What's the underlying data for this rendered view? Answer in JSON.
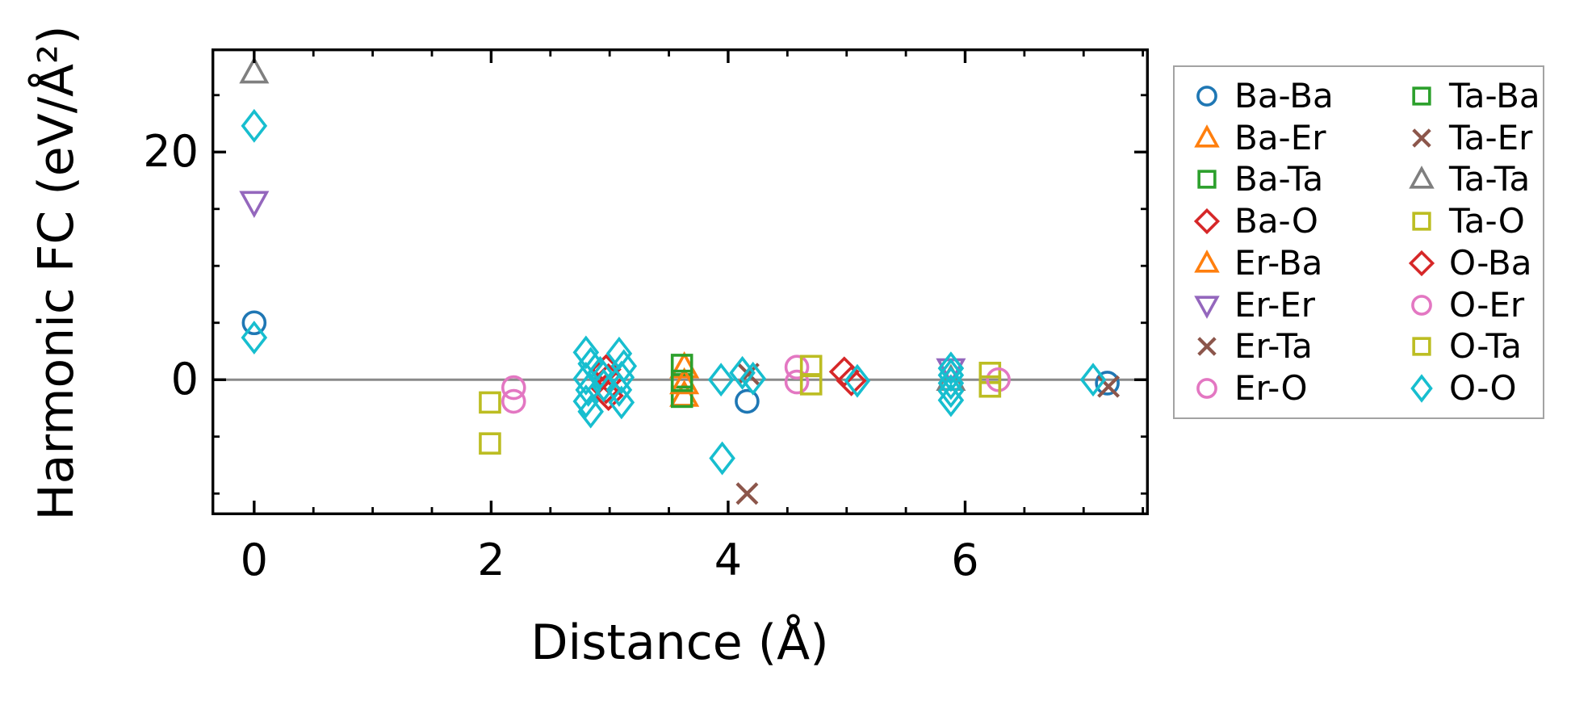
{
  "figure": {
    "background": "#ffffff"
  },
  "chart_data": {
    "type": "scatter",
    "title": "",
    "xlabel": "Distance (Å)",
    "ylabel": "Harmonic FC (eV/Å²)",
    "xlim": [
      -0.36,
      7.55
    ],
    "ylim": [
      -11.9,
      29.1
    ],
    "grid": false,
    "zero_line": {
      "y": 0,
      "color": "#8a8a8a"
    },
    "legend_position": "outside-right",
    "x_major_ticks": [
      {
        "value": 0,
        "label": "0"
      },
      {
        "value": 2,
        "label": "2"
      },
      {
        "value": 4,
        "label": "4"
      },
      {
        "value": 6,
        "label": "6"
      }
    ],
    "x_minor_ticks": [
      0.5,
      1,
      1.5,
      2.5,
      3,
      3.5,
      4.5,
      5,
      5.5,
      6.5,
      7,
      7.5
    ],
    "y_major_ticks": [
      {
        "value": 0,
        "label": "0"
      },
      {
        "value": 20,
        "label": "20"
      }
    ],
    "y_minor_ticks": [
      -10,
      -5,
      5,
      10,
      15,
      25
    ],
    "marker_styles": {
      "Ba-Ba": {
        "marker": "circle",
        "color": "#1f77b4"
      },
      "Ba-Er": {
        "marker": "triangle-up",
        "color": "#ff7f0e"
      },
      "Ba-Ta": {
        "marker": "square",
        "color": "#2ca02c"
      },
      "Ba-O": {
        "marker": "diamond",
        "color": "#d62728"
      },
      "Er-Ba": {
        "marker": "triangle-up",
        "color": "#ff7f0e"
      },
      "Er-Er": {
        "marker": "triangle-down",
        "color": "#9467bd"
      },
      "Er-Ta": {
        "marker": "x",
        "color": "#8c564b"
      },
      "Er-O": {
        "marker": "circle",
        "color": "#e377c2"
      },
      "Ta-Ba": {
        "marker": "square",
        "color": "#2ca02c"
      },
      "Ta-Er": {
        "marker": "x",
        "color": "#8c564b"
      },
      "Ta-Ta": {
        "marker": "triangle-up",
        "color": "#7f7f7f"
      },
      "Ta-O": {
        "marker": "square",
        "color": "#bcbd22"
      },
      "O-Ba": {
        "marker": "diamond",
        "color": "#d62728"
      },
      "O-Er": {
        "marker": "circle",
        "color": "#e377c2"
      },
      "O-Ta": {
        "marker": "square",
        "color": "#bcbd22"
      },
      "O-O": {
        "marker": "thin-diamond",
        "color": "#17becf"
      }
    },
    "series": [
      {
        "name": "Ba-Ba",
        "points": [
          [
            0,
            5.0
          ],
          [
            4.16,
            -1.9
          ],
          [
            7.2,
            -0.3
          ]
        ]
      },
      {
        "name": "Ba-Er",
        "points": [
          [
            3.63,
            1.1
          ],
          [
            3.63,
            -1.4
          ]
        ]
      },
      {
        "name": "Ba-Ta",
        "points": [
          [
            3.61,
            1.3
          ],
          [
            3.61,
            -1.5
          ]
        ]
      },
      {
        "name": "Ba-O",
        "points": [
          [
            2.97,
            0.9
          ],
          [
            2.99,
            0.1
          ],
          [
            2.97,
            -0.8
          ],
          [
            2.99,
            -1.4
          ],
          [
            4.98,
            0.7
          ]
        ]
      },
      {
        "name": "Er-Ba",
        "points": [
          [
            3.63,
            -0.3
          ]
        ]
      },
      {
        "name": "Er-Er",
        "points": [
          [
            0,
            15.6
          ],
          [
            5.88,
            0.9
          ]
        ]
      },
      {
        "name": "Er-Ta",
        "points": [
          [
            4.16,
            -10.0
          ],
          [
            7.21,
            -0.6
          ]
        ]
      },
      {
        "name": "Er-O",
        "points": [
          [
            2.19,
            -0.7
          ],
          [
            2.19,
            -1.9
          ],
          [
            4.58,
            1.1
          ],
          [
            4.58,
            -0.2
          ]
        ]
      },
      {
        "name": "Ta-Ba",
        "points": [
          [
            3.61,
            -0.1
          ]
        ]
      },
      {
        "name": "Ta-Er",
        "points": [
          [
            4.17,
            0.5
          ]
        ]
      },
      {
        "name": "Ta-Ta",
        "points": [
          [
            0,
            27.0
          ],
          [
            5.88,
            0.0
          ]
        ]
      },
      {
        "name": "Ta-O",
        "points": [
          [
            1.99,
            -2.0
          ],
          [
            1.99,
            -5.6
          ],
          [
            4.7,
            1.2
          ],
          [
            6.21,
            0.6
          ]
        ]
      },
      {
        "name": "O-Ba",
        "points": [
          [
            5.04,
            -0.1
          ]
        ]
      },
      {
        "name": "O-Er",
        "points": [
          [
            6.28,
            0.0
          ]
        ]
      },
      {
        "name": "O-Ta",
        "points": [
          [
            4.7,
            -0.4
          ],
          [
            6.21,
            -0.6
          ]
        ]
      },
      {
        "name": "O-O",
        "points": [
          [
            0,
            22.3
          ],
          [
            0,
            3.7
          ],
          [
            2.8,
            2.4
          ],
          [
            2.84,
            1.4
          ],
          [
            2.8,
            0.1
          ],
          [
            2.82,
            -0.9
          ],
          [
            2.8,
            -1.9
          ],
          [
            2.84,
            -2.8
          ],
          [
            2.92,
            0.6
          ],
          [
            2.95,
            -0.5
          ],
          [
            3.08,
            2.3
          ],
          [
            3.12,
            1.2
          ],
          [
            3.1,
            0.2
          ],
          [
            3.08,
            -0.9
          ],
          [
            3.1,
            -2.0
          ],
          [
            3.94,
            0.0
          ],
          [
            3.95,
            -6.9
          ],
          [
            4.12,
            0.6
          ],
          [
            4.21,
            0.1
          ],
          [
            5.09,
            -0.1
          ],
          [
            5.88,
            1.0
          ],
          [
            5.88,
            0.4
          ],
          [
            5.88,
            -0.3
          ],
          [
            5.88,
            -1.0
          ],
          [
            5.88,
            -1.8
          ],
          [
            7.08,
            0.0
          ]
        ]
      }
    ]
  },
  "legend": {
    "items": [
      {
        "label": "Ba-Ba"
      },
      {
        "label": "Ba-Er"
      },
      {
        "label": "Ba-Ta"
      },
      {
        "label": "Ba-O"
      },
      {
        "label": "Er-Ba"
      },
      {
        "label": "Er-Er"
      },
      {
        "label": "Er-Ta"
      },
      {
        "label": "Er-O"
      },
      {
        "label": "Ta-Ba"
      },
      {
        "label": "Ta-Er"
      },
      {
        "label": "Ta-Ta"
      },
      {
        "label": "Ta-O"
      },
      {
        "label": "O-Ba"
      },
      {
        "label": "O-Er"
      },
      {
        "label": "O-Ta"
      },
      {
        "label": "O-O"
      }
    ]
  }
}
